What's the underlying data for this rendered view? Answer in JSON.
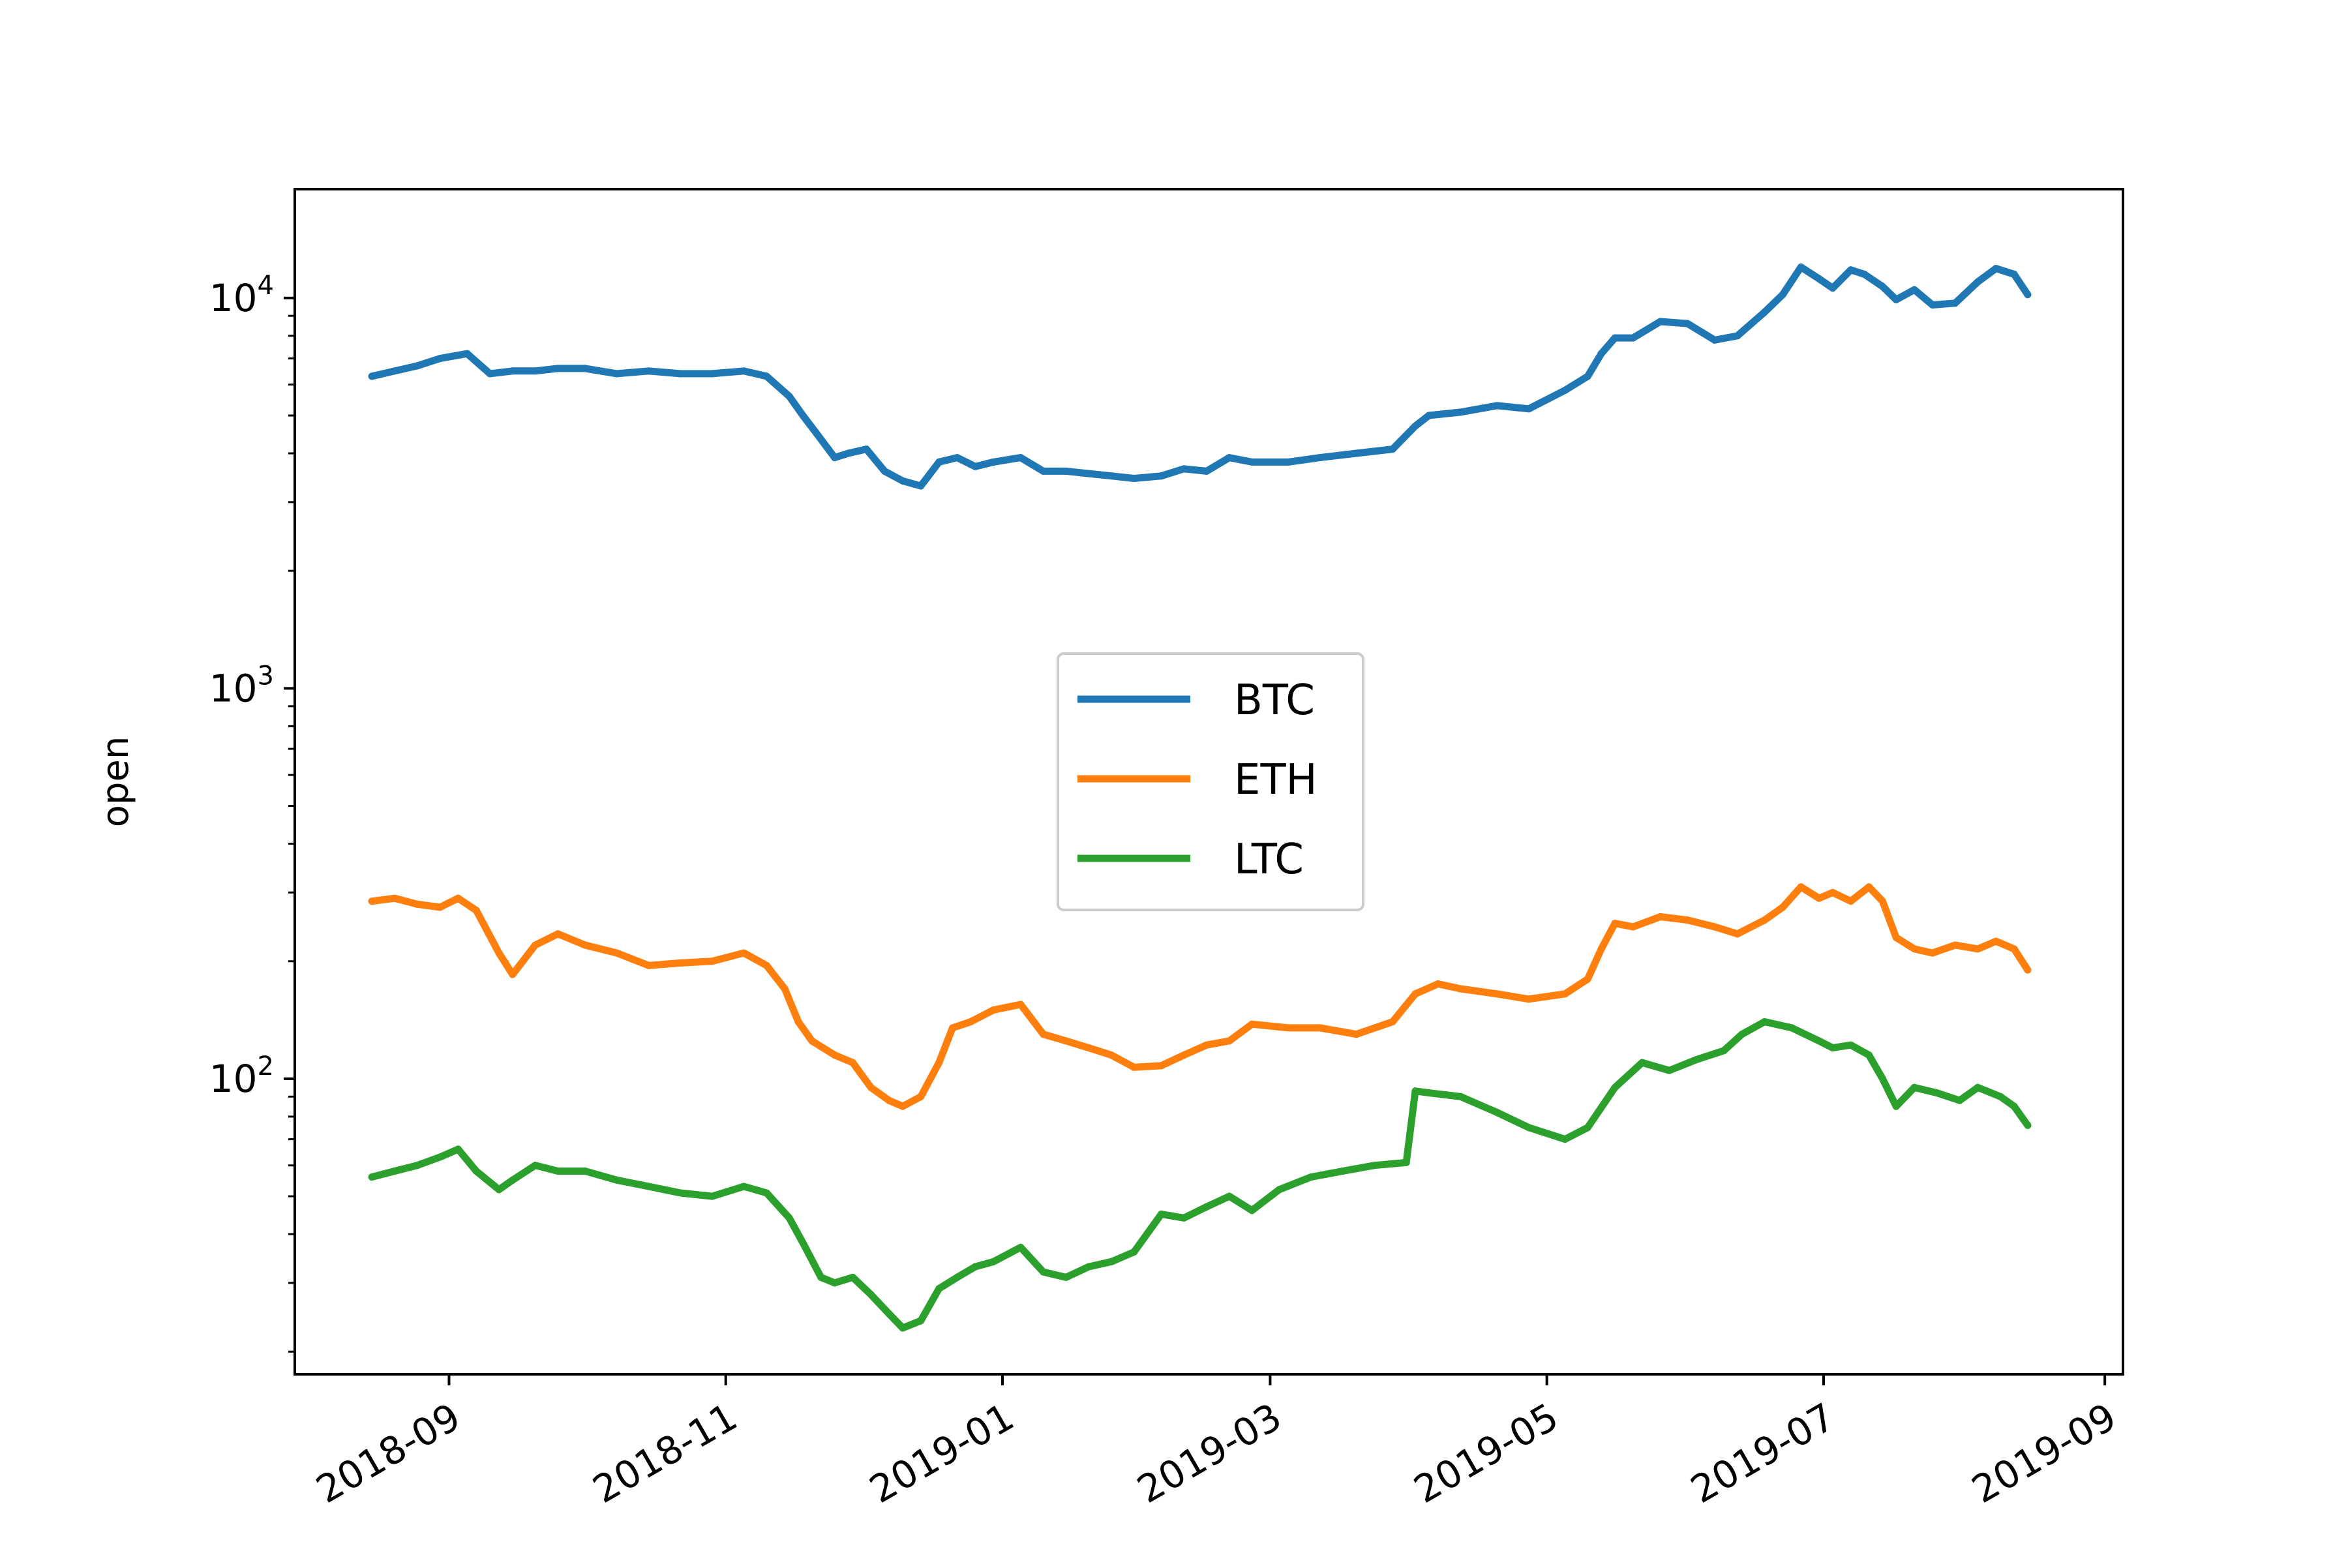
{
  "chart_data": {
    "type": "line",
    "title": "",
    "xlabel": "",
    "ylabel": "open",
    "x_type": "date",
    "xlim": [
      "2018-07-29",
      "2019-09-05"
    ],
    "ylim": [
      17.5,
      19000
    ],
    "y_scale": "log",
    "grid": false,
    "legend_position": "center",
    "x_ticks": [
      "2018-09",
      "2018-11",
      "2019-01",
      "2019-03",
      "2019-05",
      "2019-07",
      "2019-09"
    ],
    "x_tick_dates": [
      "2018-09-01",
      "2018-11-01",
      "2019-01-01",
      "2019-03-01",
      "2019-05-01",
      "2019-07-01",
      "2019-09-01"
    ],
    "y_ticks": [
      {
        "value": 100,
        "base": "10",
        "exp": "2"
      },
      {
        "value": 1000,
        "base": "10",
        "exp": "3"
      },
      {
        "value": 10000,
        "base": "10",
        "exp": "4"
      }
    ],
    "series": [
      {
        "name": "BTC",
        "color": "#1f77b4",
        "x": [
          "2018-08-15",
          "2018-08-20",
          "2018-08-25",
          "2018-08-30",
          "2018-09-05",
          "2018-09-10",
          "2018-09-15",
          "2018-09-20",
          "2018-09-25",
          "2018-10-01",
          "2018-10-08",
          "2018-10-15",
          "2018-10-22",
          "2018-10-29",
          "2018-11-05",
          "2018-11-10",
          "2018-11-15",
          "2018-11-18",
          "2018-11-21",
          "2018-11-25",
          "2018-11-28",
          "2018-12-02",
          "2018-12-06",
          "2018-12-10",
          "2018-12-14",
          "2018-12-18",
          "2018-12-22",
          "2018-12-26",
          "2018-12-30",
          "2019-01-05",
          "2019-01-10",
          "2019-01-15",
          "2019-01-20",
          "2019-01-25",
          "2019-01-30",
          "2019-02-05",
          "2019-02-10",
          "2019-02-15",
          "2019-02-20",
          "2019-02-25",
          "2019-03-05",
          "2019-03-12",
          "2019-03-20",
          "2019-03-28",
          "2019-04-02",
          "2019-04-05",
          "2019-04-12",
          "2019-04-20",
          "2019-04-27",
          "2019-05-05",
          "2019-05-10",
          "2019-05-13",
          "2019-05-16",
          "2019-05-20",
          "2019-05-26",
          "2019-06-01",
          "2019-06-07",
          "2019-06-12",
          "2019-06-18",
          "2019-06-22",
          "2019-06-26",
          "2019-06-30",
          "2019-07-03",
          "2019-07-07",
          "2019-07-10",
          "2019-07-14",
          "2019-07-17",
          "2019-07-21",
          "2019-07-25",
          "2019-07-30",
          "2019-08-04",
          "2019-08-08",
          "2019-08-12",
          "2019-08-15"
        ],
        "values": [
          6300,
          6500,
          6700,
          7000,
          7200,
          6400,
          6500,
          6500,
          6600,
          6600,
          6400,
          6500,
          6400,
          6400,
          6500,
          6300,
          5600,
          5000,
          4500,
          3900,
          4000,
          4100,
          3600,
          3400,
          3300,
          3800,
          3900,
          3700,
          3800,
          3900,
          3600,
          3600,
          3550,
          3500,
          3450,
          3500,
          3650,
          3600,
          3900,
          3800,
          3800,
          3900,
          4000,
          4100,
          4700,
          5000,
          5100,
          5300,
          5200,
          5800,
          6300,
          7200,
          7900,
          7900,
          8700,
          8600,
          7800,
          8000,
          9200,
          10200,
          12000,
          11200,
          10600,
          11800,
          11500,
          10700,
          9900,
          10500,
          9600,
          9700,
          11000,
          11900,
          11500,
          10200
        ]
      },
      {
        "name": "ETH",
        "color": "#ff7f0e",
        "x": [
          "2018-08-15",
          "2018-08-20",
          "2018-08-25",
          "2018-08-30",
          "2018-09-03",
          "2018-09-07",
          "2018-09-12",
          "2018-09-15",
          "2018-09-20",
          "2018-09-25",
          "2018-10-01",
          "2018-10-08",
          "2018-10-15",
          "2018-10-22",
          "2018-10-29",
          "2018-11-05",
          "2018-11-10",
          "2018-11-14",
          "2018-11-17",
          "2018-11-20",
          "2018-11-25",
          "2018-11-29",
          "2018-12-03",
          "2018-12-07",
          "2018-12-10",
          "2018-12-14",
          "2018-12-18",
          "2018-12-21",
          "2018-12-25",
          "2018-12-30",
          "2019-01-05",
          "2019-01-10",
          "2019-01-15",
          "2019-01-20",
          "2019-01-25",
          "2019-01-30",
          "2019-02-05",
          "2019-02-10",
          "2019-02-15",
          "2019-02-20",
          "2019-02-25",
          "2019-03-05",
          "2019-03-12",
          "2019-03-20",
          "2019-03-28",
          "2019-04-02",
          "2019-04-07",
          "2019-04-12",
          "2019-04-20",
          "2019-04-27",
          "2019-05-05",
          "2019-05-10",
          "2019-05-13",
          "2019-05-16",
          "2019-05-20",
          "2019-05-26",
          "2019-06-01",
          "2019-06-07",
          "2019-06-12",
          "2019-06-18",
          "2019-06-22",
          "2019-06-26",
          "2019-06-30",
          "2019-07-03",
          "2019-07-07",
          "2019-07-11",
          "2019-07-14",
          "2019-07-17",
          "2019-07-21",
          "2019-07-25",
          "2019-07-30",
          "2019-08-04",
          "2019-08-08",
          "2019-08-12",
          "2019-08-15"
        ],
        "values": [
          285,
          290,
          280,
          275,
          290,
          270,
          210,
          185,
          220,
          235,
          220,
          210,
          195,
          198,
          200,
          210,
          195,
          170,
          140,
          125,
          115,
          110,
          95,
          88,
          85,
          90,
          110,
          135,
          140,
          150,
          155,
          130,
          125,
          120,
          115,
          107,
          108,
          115,
          122,
          125,
          138,
          135,
          135,
          130,
          140,
          165,
          175,
          170,
          165,
          160,
          165,
          180,
          215,
          250,
          245,
          260,
          255,
          245,
          235,
          255,
          275,
          310,
          290,
          300,
          285,
          310,
          285,
          230,
          215,
          210,
          220,
          215,
          225,
          215,
          190
        ]
      },
      {
        "name": "LTC",
        "color": "#2ca02c",
        "x": [
          "2018-08-15",
          "2018-08-20",
          "2018-08-25",
          "2018-08-30",
          "2018-09-03",
          "2018-09-07",
          "2018-09-12",
          "2018-09-15",
          "2018-09-20",
          "2018-09-25",
          "2018-10-01",
          "2018-10-08",
          "2018-10-15",
          "2018-10-22",
          "2018-10-29",
          "2018-11-05",
          "2018-11-10",
          "2018-11-15",
          "2018-11-18",
          "2018-11-22",
          "2018-11-25",
          "2018-11-29",
          "2018-12-03",
          "2018-12-07",
          "2018-12-10",
          "2018-12-14",
          "2018-12-18",
          "2018-12-22",
          "2018-12-26",
          "2018-12-30",
          "2019-01-05",
          "2019-01-10",
          "2019-01-15",
          "2019-01-20",
          "2019-01-25",
          "2019-01-30",
          "2019-02-05",
          "2019-02-10",
          "2019-02-15",
          "2019-02-20",
          "2019-02-25",
          "2019-03-03",
          "2019-03-10",
          "2019-03-17",
          "2019-03-24",
          "2019-03-31",
          "2019-04-02",
          "2019-04-05",
          "2019-04-12",
          "2019-04-20",
          "2019-04-27",
          "2019-05-05",
          "2019-05-10",
          "2019-05-16",
          "2019-05-22",
          "2019-05-28",
          "2019-06-03",
          "2019-06-09",
          "2019-06-13",
          "2019-06-18",
          "2019-06-24",
          "2019-06-30",
          "2019-07-03",
          "2019-07-07",
          "2019-07-11",
          "2019-07-14",
          "2019-07-17",
          "2019-07-21",
          "2019-07-26",
          "2019-07-31",
          "2019-08-04",
          "2019-08-09",
          "2019-08-12",
          "2019-08-15"
        ],
        "values": [
          56,
          58,
          60,
          63,
          66,
          58,
          52,
          55,
          60,
          58,
          58,
          55,
          53,
          51,
          50,
          53,
          51,
          44,
          38,
          31,
          30,
          31,
          28,
          25,
          23,
          24,
          29,
          31,
          33,
          34,
          37,
          32,
          31,
          33,
          34,
          36,
          45,
          44,
          47,
          50,
          46,
          52,
          56,
          58,
          60,
          61,
          93,
          92,
          90,
          82,
          75,
          70,
          75,
          95,
          110,
          105,
          112,
          118,
          130,
          140,
          135,
          125,
          120,
          122,
          115,
          100,
          85,
          95,
          92,
          88,
          95,
          90,
          85,
          76
        ]
      }
    ]
  }
}
